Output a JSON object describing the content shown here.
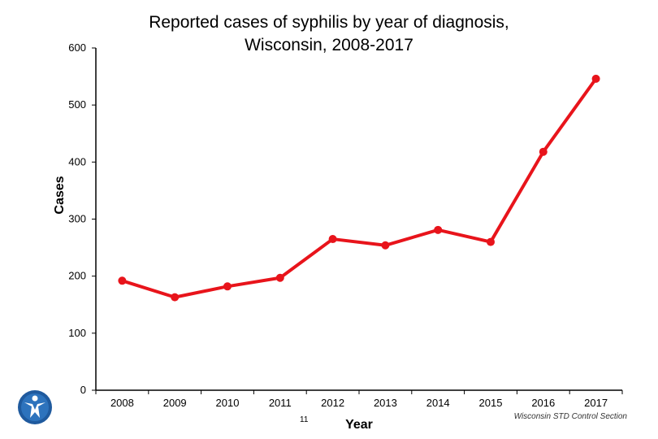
{
  "chart_data": {
    "type": "line",
    "title_lines": [
      "Reported cases of syphilis by year of diagnosis,",
      "Wisconsin, 2008-2017"
    ],
    "xlabel": "Year",
    "ylabel": "Cases",
    "categories": [
      "2008",
      "2009",
      "2010",
      "2011",
      "2012",
      "2013",
      "2014",
      "2015",
      "2016",
      "2017"
    ],
    "values": [
      192,
      163,
      182,
      197,
      265,
      254,
      281,
      260,
      418,
      546
    ],
    "ylim": [
      0,
      600
    ],
    "yticks": [
      0,
      100,
      200,
      300,
      400,
      500,
      600
    ],
    "ytick_labels": [
      "0",
      "100",
      "200",
      "300",
      "400",
      "500",
      "600"
    ],
    "grid": false,
    "legend": "none",
    "line_color": "#e8141b"
  },
  "footer": {
    "page_number": "11",
    "credit": "Wisconsin STD Control Section"
  },
  "icons": {
    "logo": "wisconsin-dhs-logo-icon"
  }
}
